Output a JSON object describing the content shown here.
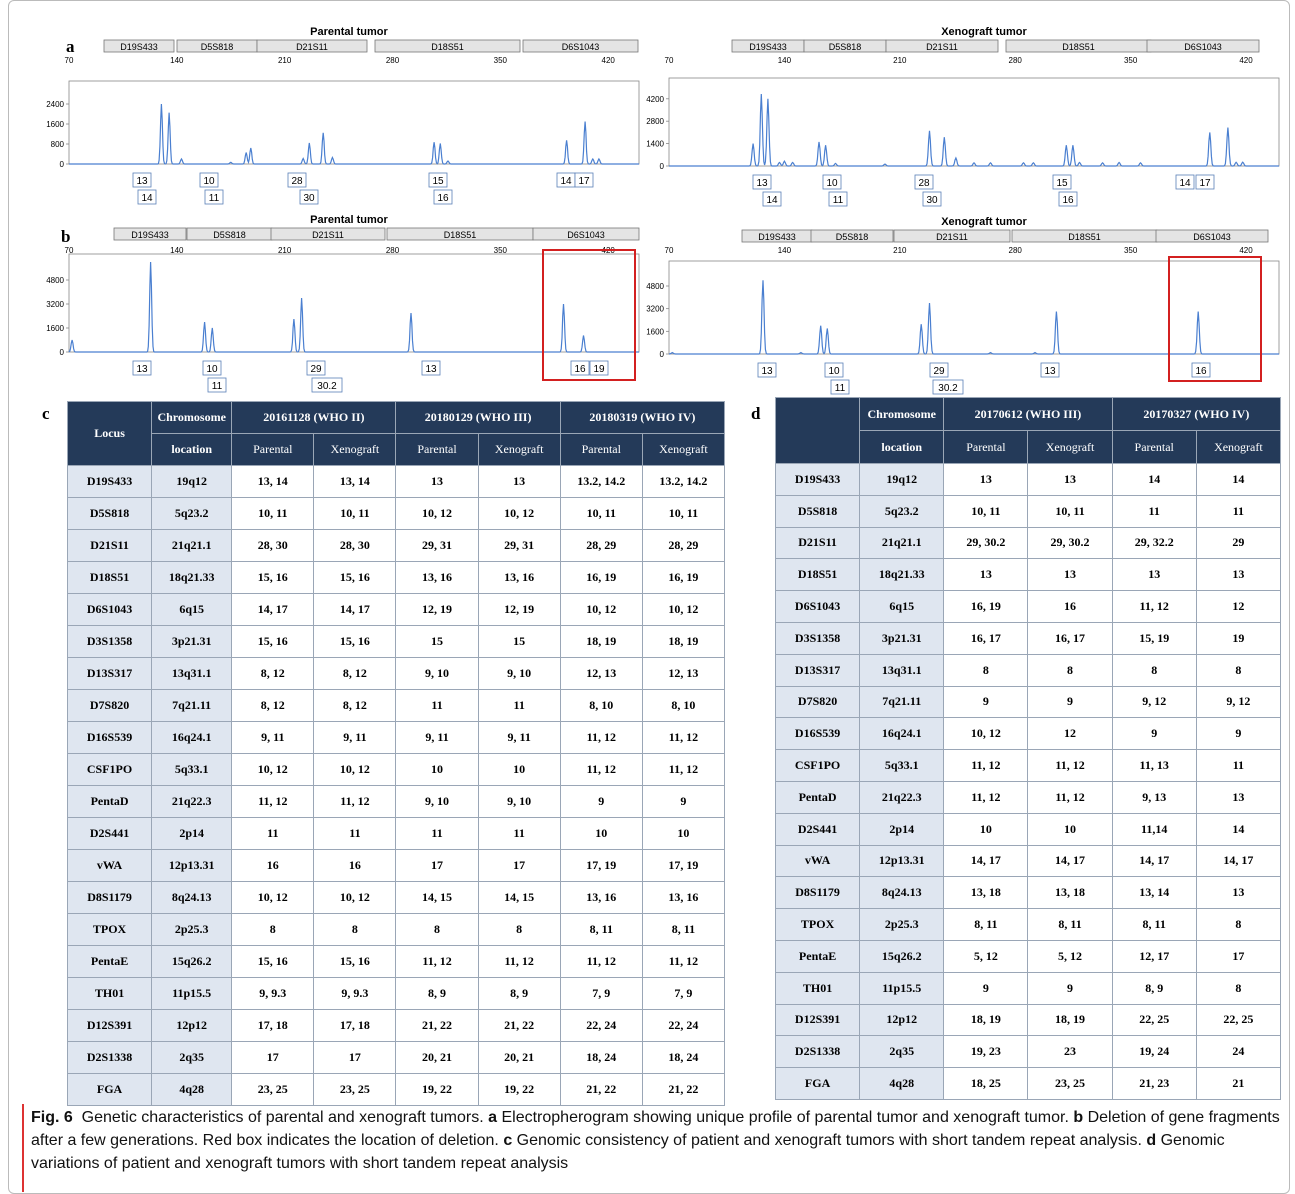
{
  "figure": {
    "panel_a_label": "a",
    "panel_b_label": "b",
    "panel_c_label": "c",
    "panel_d_label": "d"
  },
  "electropherograms": [
    {
      "id": "a-parental",
      "title": "Parental tumor",
      "loci": [
        "D19S433",
        "D5S818",
        "D21S11",
        "D18S51",
        "D6S1043"
      ],
      "x_ticks": [
        "70",
        "140",
        "210",
        "280",
        "350",
        "420"
      ],
      "y_ticks": [
        "2400",
        "1600",
        "800",
        "0"
      ],
      "peaks": [
        [
          130,
          2400
        ],
        [
          135,
          2050
        ],
        [
          143,
          200
        ],
        [
          175,
          70
        ],
        [
          185,
          460
        ],
        [
          188,
          640
        ],
        [
          222,
          220
        ],
        [
          226,
          840
        ],
        [
          235,
          1250
        ],
        [
          241,
          260
        ],
        [
          307,
          870
        ],
        [
          311,
          820
        ],
        [
          316,
          120
        ],
        [
          393,
          950
        ],
        [
          405,
          1700
        ],
        [
          410,
          200
        ],
        [
          414,
          200
        ]
      ],
      "allele_row1": [
        "13",
        "10",
        "28",
        "15",
        "14",
        "17"
      ],
      "allele_row2": [
        "14",
        "11",
        "30",
        "16"
      ],
      "red_box": false
    },
    {
      "id": "a-xenograft",
      "title": "Xenograft tumor",
      "loci": [
        "D19S433",
        "D5S818",
        "D21S11",
        "D18S51",
        "D6S1043"
      ],
      "x_ticks": [
        "70",
        "140",
        "210",
        "280",
        "350",
        "420"
      ],
      "y_ticks": [
        "4200",
        "2800",
        "1400",
        "0"
      ],
      "peaks": [
        [
          121,
          1400
        ],
        [
          126,
          4500
        ],
        [
          130,
          4200
        ],
        [
          137,
          220
        ],
        [
          140,
          300
        ],
        [
          145,
          220
        ],
        [
          161,
          1500
        ],
        [
          165,
          1300
        ],
        [
          171,
          160
        ],
        [
          201,
          120
        ],
        [
          228,
          2200
        ],
        [
          237,
          1800
        ],
        [
          244,
          500
        ],
        [
          255,
          200
        ],
        [
          265,
          200
        ],
        [
          285,
          200
        ],
        [
          291,
          200
        ],
        [
          311,
          1300
        ],
        [
          315,
          1300
        ],
        [
          319,
          220
        ],
        [
          333,
          200
        ],
        [
          343,
          220
        ],
        [
          356,
          200
        ],
        [
          398,
          2100
        ],
        [
          409,
          2400
        ],
        [
          414,
          230
        ],
        [
          418,
          240
        ]
      ],
      "allele_row1": [
        "13",
        "10",
        "28",
        "15",
        "14",
        "17"
      ],
      "allele_row2": [
        "14",
        "11",
        "30",
        "16"
      ],
      "red_box": false
    },
    {
      "id": "b-parental",
      "title": "Parental tumor",
      "loci": [
        "D19S433",
        "D5S818",
        "D21S11",
        "D18S51",
        "D6S1043"
      ],
      "x_ticks": [
        "70",
        "140",
        "210",
        "280",
        "350",
        "420"
      ],
      "y_ticks": [
        "4800",
        "3200",
        "1600",
        "0"
      ],
      "peaks": [
        [
          72,
          800
        ],
        [
          123,
          6000
        ],
        [
          158,
          2000
        ],
        [
          163,
          1600
        ],
        [
          216,
          2200
        ],
        [
          221,
          3600
        ],
        [
          292,
          2600
        ],
        [
          391,
          3200
        ],
        [
          404,
          1100
        ]
      ],
      "allele_row1": [
        "13",
        "10",
        "29",
        "13",
        "16",
        "19"
      ],
      "allele_row2": [
        "11",
        "30.2"
      ],
      "red_box": true
    },
    {
      "id": "b-xenograft",
      "title": "Xenograft tumor",
      "loci": [
        "D19S433",
        "D5S818",
        "D21S11",
        "D18S51",
        "D6S1043"
      ],
      "x_ticks": [
        "70",
        "140",
        "210",
        "280",
        "350",
        "420"
      ],
      "y_ticks": [
        "4800",
        "3200",
        "1600",
        "0"
      ],
      "peaks": [
        [
          72,
          100
        ],
        [
          127,
          5200
        ],
        [
          150,
          100
        ],
        [
          162,
          2000
        ],
        [
          166,
          1800
        ],
        [
          223,
          2100
        ],
        [
          228,
          3600
        ],
        [
          265,
          100
        ],
        [
          292,
          100
        ],
        [
          305,
          3000
        ],
        [
          391,
          3000
        ]
      ],
      "allele_row1": [
        "13",
        "10",
        "29",
        "13",
        "16"
      ],
      "allele_row2": [
        "11",
        "30.2"
      ],
      "red_box": true
    }
  ],
  "table_c": {
    "locus_header": "Locus",
    "chrom_header_1": "Chromosome",
    "chrom_header_2": "location",
    "groups": [
      "20161128 (WHO II)",
      "20180129 (WHO III)",
      "20180319 (WHO IV)"
    ],
    "sub": [
      "Parental",
      "Xenograft",
      "Parental",
      "Xenograft",
      "Parental",
      "Xenograft"
    ],
    "rows": [
      [
        "D19S433",
        "19q12",
        "13, 14",
        "13, 14",
        "13",
        "13",
        "13.2, 14.2",
        "13.2, 14.2"
      ],
      [
        "D5S818",
        "5q23.2",
        "10, 11",
        "10, 11",
        "10, 12",
        "10, 12",
        "10, 11",
        "10, 11"
      ],
      [
        "D21S11",
        "21q21.1",
        "28, 30",
        "28, 30",
        "29, 31",
        "29, 31",
        "28, 29",
        "28, 29"
      ],
      [
        "D18S51",
        "18q21.33",
        "15, 16",
        "15, 16",
        "13, 16",
        "13, 16",
        "16, 19",
        "16, 19"
      ],
      [
        "D6S1043",
        "6q15",
        "14, 17",
        "14, 17",
        "12, 19",
        "12, 19",
        "10, 12",
        "10, 12"
      ],
      [
        "D3S1358",
        "3p21.31",
        "15, 16",
        "15, 16",
        "15",
        "15",
        "18, 19",
        "18, 19"
      ],
      [
        "D13S317",
        "13q31.1",
        "8, 12",
        "8, 12",
        "9, 10",
        "9, 10",
        "12, 13",
        "12, 13"
      ],
      [
        "D7S820",
        "7q21.11",
        "8, 12",
        "8, 12",
        "11",
        "11",
        "8, 10",
        "8, 10"
      ],
      [
        "D16S539",
        "16q24.1",
        "9, 11",
        "9, 11",
        "9, 11",
        "9, 11",
        "11, 12",
        "11, 12"
      ],
      [
        "CSF1PO",
        "5q33.1",
        "10, 12",
        "10, 12",
        "10",
        "10",
        "11, 12",
        "11, 12"
      ],
      [
        "PentaD",
        "21q22.3",
        "11, 12",
        "11, 12",
        "9, 10",
        "9, 10",
        "9",
        "9"
      ],
      [
        "D2S441",
        "2p14",
        "11",
        "11",
        "11",
        "11",
        "10",
        "10"
      ],
      [
        "vWA",
        "12p13.31",
        "16",
        "16",
        "17",
        "17",
        "17, 19",
        "17, 19"
      ],
      [
        "D8S1179",
        "8q24.13",
        "10, 12",
        "10, 12",
        "14, 15",
        "14, 15",
        "13, 16",
        "13, 16"
      ],
      [
        "TPOX",
        "2p25.3",
        "8",
        "8",
        "8",
        "8",
        "8, 11",
        "8, 11"
      ],
      [
        "PentaE",
        "15q26.2",
        "15, 16",
        "15, 16",
        "11, 12",
        "11, 12",
        "11, 12",
        "11, 12"
      ],
      [
        "TH01",
        "11p15.5",
        "9, 9.3",
        "9, 9.3",
        "8, 9",
        "8, 9",
        "7, 9",
        "7, 9"
      ],
      [
        "D12S391",
        "12p12",
        "17, 18",
        "17, 18",
        "21, 22",
        "21, 22",
        "22, 24",
        "22, 24"
      ],
      [
        "D2S1338",
        "2q35",
        "17",
        "17",
        "20, 21",
        "20, 21",
        "18, 24",
        "18, 24"
      ],
      [
        "FGA",
        "4q28",
        "23, 25",
        "23, 25",
        "19, 22",
        "19, 22",
        "21, 22",
        "21, 22"
      ]
    ]
  },
  "table_d": {
    "locus_header": "",
    "chrom_header_1": "Chromosome",
    "chrom_header_2": "location",
    "groups": [
      "20170612 (WHO III)",
      "20170327 (WHO IV)"
    ],
    "sub": [
      "Parental",
      "Xenograft",
      "Parental",
      "Xenograft"
    ],
    "rows": [
      [
        "D19S433",
        "19q12",
        "13",
        "13",
        "14",
        "14"
      ],
      [
        "D5S818",
        "5q23.2",
        "10, 11",
        "10, 11",
        "11",
        "11"
      ],
      [
        "D21S11",
        "21q21.1",
        "29, 30.2",
        "29, 30.2",
        "29, 32.2",
        "29"
      ],
      [
        "D18S51",
        "18q21.33",
        "13",
        "13",
        "13",
        "13"
      ],
      [
        "D6S1043",
        "6q15",
        "16, 19",
        "16",
        "11, 12",
        "12"
      ],
      [
        "D3S1358",
        "3p21.31",
        "16, 17",
        "16, 17",
        "15, 19",
        "19"
      ],
      [
        "D13S317",
        "13q31.1",
        "8",
        "8",
        "8",
        "8"
      ],
      [
        "D7S820",
        "7q21.11",
        "9",
        "9",
        "9, 12",
        "9, 12"
      ],
      [
        "D16S539",
        "16q24.1",
        "10, 12",
        "12",
        "9",
        "9"
      ],
      [
        "CSF1PO",
        "5q33.1",
        "11, 12",
        "11, 12",
        "11, 13",
        "11"
      ],
      [
        "PentaD",
        "21q22.3",
        "11, 12",
        "11, 12",
        "9, 13",
        "13"
      ],
      [
        "D2S441",
        "2p14",
        "10",
        "10",
        "11,14",
        "14"
      ],
      [
        "vWA",
        "12p13.31",
        "14, 17",
        "14, 17",
        "14, 17",
        "14, 17"
      ],
      [
        "D8S1179",
        "8q24.13",
        "13, 18",
        "13, 18",
        "13, 14",
        "13"
      ],
      [
        "TPOX",
        "2p25.3",
        "8, 11",
        "8, 11",
        "8, 11",
        "8"
      ],
      [
        "PentaE",
        "15q26.2",
        "5, 12",
        "5, 12",
        "12, 17",
        "17"
      ],
      [
        "TH01",
        "11p15.5",
        "9",
        "9",
        "8, 9",
        "8"
      ],
      [
        "D12S391",
        "12p12",
        "18, 19",
        "18, 19",
        "22, 25",
        "22, 25"
      ],
      [
        "D2S1338",
        "2q35",
        "19, 23",
        "23",
        "19, 24",
        "24"
      ],
      [
        "FGA",
        "4q28",
        "18, 25",
        "23, 25",
        "21, 23",
        "21"
      ]
    ]
  },
  "caption": {
    "fig": "Fig. 6",
    "title": "Genetic characteristics of parental and xenograft tumors.",
    "a": "a",
    "a_text": "Electropherogram showing unique profile of parental tumor and xenograft tumor.",
    "b": "b",
    "b_text": "Deletion of gene fragments after a few generations. Red box indicates the location of deletion.",
    "c": "c",
    "c_text": "Genomic consistency of patient and xenograft tumors with short tandem repeat analysis.",
    "d": "d",
    "d_text": "Genomic variations of patient and xenograft tumors with short tandem repeat analysis"
  },
  "colors": {
    "trace": "#4a7fd0",
    "header": "#243a59",
    "highlight": "#d32020",
    "locus_cell": "#dfe6f0"
  }
}
